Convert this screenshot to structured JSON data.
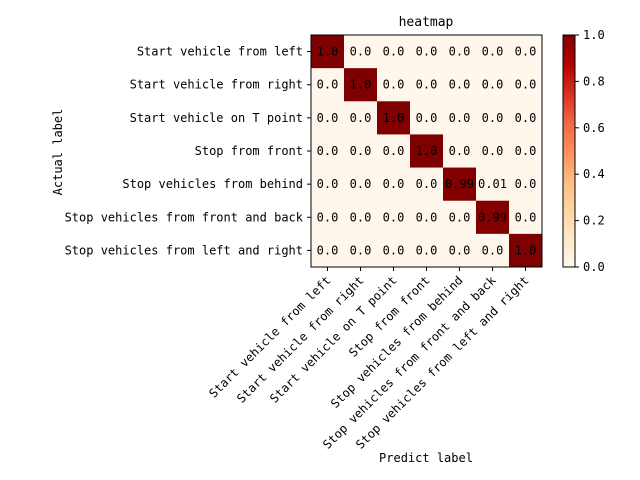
{
  "chart_data": {
    "type": "heatmap",
    "title": "heatmap",
    "xlabel": "Predict label",
    "ylabel": "Actual label",
    "row_labels": [
      "Start vehicle from left",
      "Start vehicle from right",
      "Start vehicle on T point",
      "Stop from front",
      "Stop vehicles from behind",
      "Stop vehicles from front and back",
      "Stop vehicles from left and right"
    ],
    "col_labels": [
      "Start vehicle from left",
      "Start vehicle from right",
      "Start vehicle on T point",
      "Stop from front",
      "Stop vehicles from behind",
      "Stop vehicles from front and back",
      "Stop vehicles from left and right"
    ],
    "values": [
      [
        1.0,
        0.0,
        0.0,
        0.0,
        0.0,
        0.0,
        0.0
      ],
      [
        0.0,
        1.0,
        0.0,
        0.0,
        0.0,
        0.0,
        0.0
      ],
      [
        0.0,
        0.0,
        1.0,
        0.0,
        0.0,
        0.0,
        0.0
      ],
      [
        0.0,
        0.0,
        0.0,
        1.0,
        0.0,
        0.0,
        0.0
      ],
      [
        0.0,
        0.0,
        0.0,
        0.0,
        0.99,
        0.01,
        0.0
      ],
      [
        0.0,
        0.0,
        0.0,
        0.0,
        0.0,
        0.99,
        0.0
      ],
      [
        0.0,
        0.0,
        0.0,
        0.0,
        0.0,
        0.0,
        1.0
      ]
    ],
    "cell_text": [
      [
        "1.0",
        "0.0",
        "0.0",
        "0.0",
        "0.0",
        "0.0",
        "0.0"
      ],
      [
        "0.0",
        "1.0",
        "0.0",
        "0.0",
        "0.0",
        "0.0",
        "0.0"
      ],
      [
        "0.0",
        "0.0",
        "1.0",
        "0.0",
        "0.0",
        "0.0",
        "0.0"
      ],
      [
        "0.0",
        "0.0",
        "0.0",
        "1.0",
        "0.0",
        "0.0",
        "0.0"
      ],
      [
        "0.0",
        "0.0",
        "0.0",
        "0.0",
        "0.99",
        "0.01",
        "0.0"
      ],
      [
        "0.0",
        "0.0",
        "0.0",
        "0.0",
        "0.0",
        "0.99",
        "0.0"
      ],
      [
        "0.0",
        "0.0",
        "0.0",
        "0.0",
        "0.0",
        "0.0",
        "1.0"
      ]
    ],
    "colormap": "OrRd",
    "vmin": 0.0,
    "vmax": 1.0,
    "colorbar_ticks": [
      "0.0",
      "0.2",
      "0.4",
      "0.6",
      "0.8",
      "1.0"
    ],
    "grid": false,
    "colors": {
      "low": "#fff7ec",
      "high": "#7f0000",
      "annotation": "#000000"
    }
  }
}
